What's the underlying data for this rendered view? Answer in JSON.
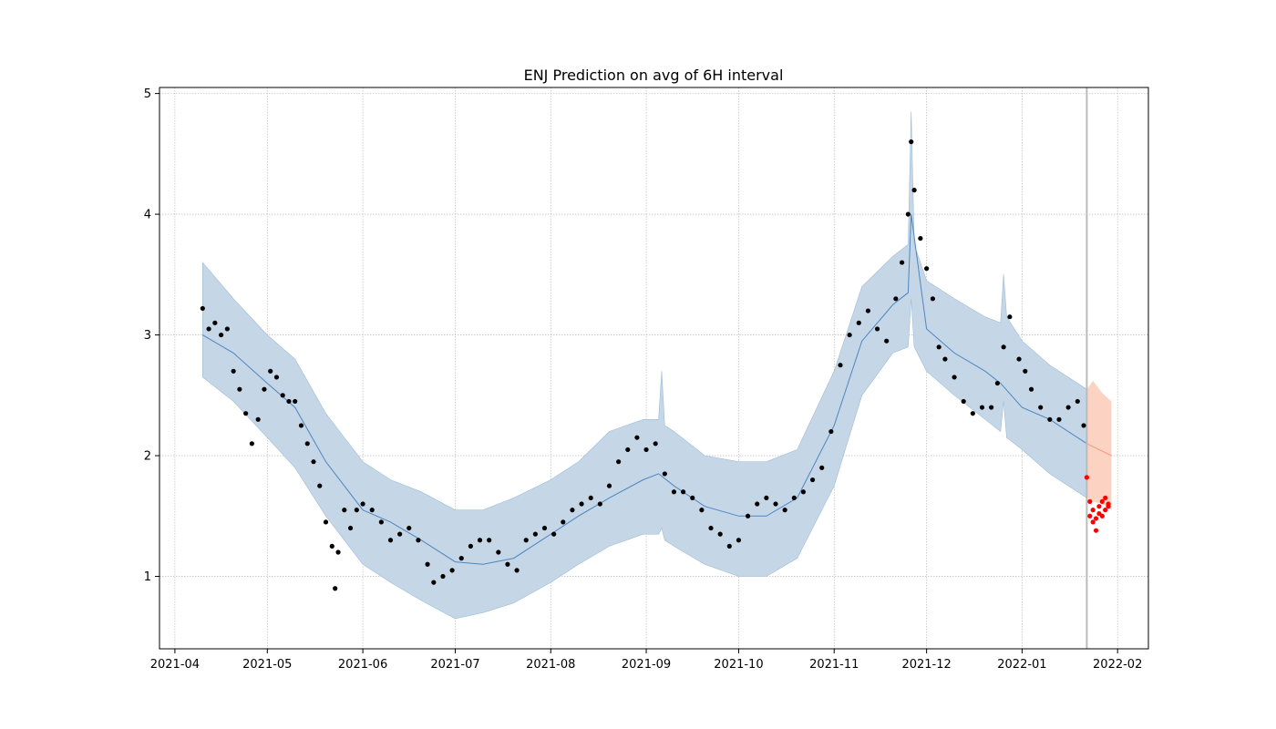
{
  "chart_data": {
    "type": "line",
    "title": "ENJ Prediction on avg of 6H interval",
    "xlabel": "",
    "ylabel": "",
    "x_tick_labels": [
      "2021-04",
      "2021-05",
      "2021-06",
      "2021-07",
      "2021-08",
      "2021-09",
      "2021-10",
      "2021-11",
      "2021-12",
      "2022-01",
      "2022-02"
    ],
    "y_tick_labels": [
      "1",
      "2",
      "3",
      "4",
      "5"
    ],
    "x_ticks": [
      "2021-04-01",
      "2021-05-01",
      "2021-06-01",
      "2021-07-01",
      "2021-08-01",
      "2021-09-01",
      "2021-10-01",
      "2021-11-01",
      "2021-12-01",
      "2022-01-01",
      "2022-02-01"
    ],
    "y_ticks": [
      1,
      2,
      3,
      4,
      5
    ],
    "xlim": [
      "2021-03-27",
      "2022-02-11"
    ],
    "ylim": [
      0.4,
      5.05
    ],
    "grid": true,
    "forecast_split_date": "2022-01-22",
    "colors": {
      "band": "#c5d7e7",
      "band_edge": "#9fbcd6",
      "forecast_band": "#fcd2c2",
      "trend": "#4f85c0",
      "forecast_trend": "#f09a80",
      "observed": "#000000",
      "actual_after_split": "#ff0000",
      "split_line": "#bbbbbb"
    },
    "series": [
      {
        "role": "trend",
        "x": [
          "2021-04-10",
          "2021-04-20",
          "2021-05-01",
          "2021-05-10",
          "2021-05-20",
          "2021-06-01",
          "2021-06-10",
          "2021-06-20",
          "2021-07-01",
          "2021-07-10",
          "2021-07-20",
          "2021-08-01",
          "2021-08-10",
          "2021-08-20",
          "2021-08-31",
          "2021-09-05",
          "2021-09-10",
          "2021-09-20",
          "2021-10-01",
          "2021-10-10",
          "2021-10-20",
          "2021-11-01",
          "2021-11-10",
          "2021-11-20",
          "2021-11-25",
          "2021-11-26",
          "2021-12-01",
          "2021-12-10",
          "2021-12-20",
          "2021-12-25",
          "2022-01-01",
          "2022-01-10",
          "2022-01-22"
        ],
        "values": [
          3.0,
          2.85,
          2.6,
          2.4,
          1.95,
          1.55,
          1.45,
          1.3,
          1.12,
          1.1,
          1.15,
          1.35,
          1.5,
          1.65,
          1.8,
          1.85,
          1.75,
          1.58,
          1.5,
          1.5,
          1.65,
          2.25,
          2.95,
          3.25,
          3.35,
          4.0,
          3.05,
          2.85,
          2.7,
          2.6,
          2.4,
          2.3,
          2.1
        ]
      },
      {
        "role": "band_upper",
        "x": [
          "2021-04-10",
          "2021-04-20",
          "2021-05-01",
          "2021-05-10",
          "2021-05-20",
          "2021-06-01",
          "2021-06-10",
          "2021-06-20",
          "2021-07-01",
          "2021-07-10",
          "2021-07-20",
          "2021-08-01",
          "2021-08-10",
          "2021-08-20",
          "2021-08-31",
          "2021-09-05",
          "2021-09-06",
          "2021-09-07",
          "2021-09-10",
          "2021-09-20",
          "2021-10-01",
          "2021-10-10",
          "2021-10-20",
          "2021-11-01",
          "2021-11-10",
          "2021-11-20",
          "2021-11-25",
          "2021-11-26",
          "2021-11-27",
          "2021-12-01",
          "2021-12-10",
          "2021-12-20",
          "2021-12-25",
          "2021-12-26",
          "2021-12-27",
          "2022-01-01",
          "2022-01-10",
          "2022-01-22"
        ],
        "values": [
          3.6,
          3.3,
          3.0,
          2.8,
          2.35,
          1.95,
          1.8,
          1.7,
          1.55,
          1.55,
          1.65,
          1.8,
          1.95,
          2.2,
          2.3,
          2.3,
          2.7,
          2.25,
          2.2,
          2.0,
          1.95,
          1.95,
          2.05,
          2.7,
          3.4,
          3.65,
          3.75,
          4.85,
          3.75,
          3.45,
          3.3,
          3.15,
          3.1,
          3.5,
          3.15,
          2.95,
          2.75,
          2.55
        ]
      },
      {
        "role": "band_lower",
        "x": [
          "2021-04-10",
          "2021-04-20",
          "2021-05-01",
          "2021-05-10",
          "2021-05-20",
          "2021-06-01",
          "2021-06-10",
          "2021-06-20",
          "2021-07-01",
          "2021-07-10",
          "2021-07-20",
          "2021-08-01",
          "2021-08-10",
          "2021-08-20",
          "2021-08-31",
          "2021-09-05",
          "2021-09-06",
          "2021-09-07",
          "2021-09-10",
          "2021-09-20",
          "2021-10-01",
          "2021-10-10",
          "2021-10-20",
          "2021-11-01",
          "2021-11-10",
          "2021-11-20",
          "2021-11-25",
          "2021-11-26",
          "2021-11-27",
          "2021-12-01",
          "2021-12-10",
          "2021-12-20",
          "2021-12-25",
          "2021-12-26",
          "2021-12-27",
          "2022-01-01",
          "2022-01-10",
          "2022-01-22"
        ],
        "values": [
          2.65,
          2.45,
          2.15,
          1.9,
          1.5,
          1.1,
          0.95,
          0.8,
          0.65,
          0.7,
          0.78,
          0.95,
          1.1,
          1.25,
          1.35,
          1.35,
          1.4,
          1.3,
          1.25,
          1.1,
          1.0,
          1.0,
          1.15,
          1.75,
          2.5,
          2.85,
          2.9,
          3.3,
          2.9,
          2.7,
          2.5,
          2.3,
          2.2,
          2.45,
          2.15,
          2.05,
          1.85,
          1.65
        ]
      },
      {
        "role": "forecast_trend",
        "x": [
          "2022-01-22",
          "2022-01-26",
          "2022-01-30"
        ],
        "values": [
          2.1,
          2.05,
          2.0
        ]
      },
      {
        "role": "forecast_upper",
        "x": [
          "2022-01-22",
          "2022-01-24",
          "2022-01-27",
          "2022-01-30"
        ],
        "values": [
          2.55,
          2.62,
          2.52,
          2.45
        ]
      },
      {
        "role": "forecast_lower",
        "x": [
          "2022-01-22",
          "2022-01-24",
          "2022-01-27",
          "2022-01-30"
        ],
        "values": [
          1.65,
          1.62,
          1.6,
          1.55
        ]
      },
      {
        "role": "observed",
        "x": [
          "2021-04-10",
          "2021-04-12",
          "2021-04-14",
          "2021-04-16",
          "2021-04-18",
          "2021-04-20",
          "2021-04-22",
          "2021-04-24",
          "2021-04-26",
          "2021-04-28",
          "2021-04-30",
          "2021-05-02",
          "2021-05-04",
          "2021-05-06",
          "2021-05-08",
          "2021-05-10",
          "2021-05-12",
          "2021-05-14",
          "2021-05-16",
          "2021-05-18",
          "2021-05-20",
          "2021-05-22",
          "2021-05-23",
          "2021-05-24",
          "2021-05-26",
          "2021-05-28",
          "2021-05-30",
          "2021-06-01",
          "2021-06-04",
          "2021-06-07",
          "2021-06-10",
          "2021-06-13",
          "2021-06-16",
          "2021-06-19",
          "2021-06-22",
          "2021-06-24",
          "2021-06-27",
          "2021-06-30",
          "2021-07-03",
          "2021-07-06",
          "2021-07-09",
          "2021-07-12",
          "2021-07-15",
          "2021-07-18",
          "2021-07-21",
          "2021-07-24",
          "2021-07-27",
          "2021-07-30",
          "2021-08-02",
          "2021-08-05",
          "2021-08-08",
          "2021-08-11",
          "2021-08-14",
          "2021-08-17",
          "2021-08-20",
          "2021-08-23",
          "2021-08-26",
          "2021-08-29",
          "2021-09-01",
          "2021-09-04",
          "2021-09-07",
          "2021-09-10",
          "2021-09-13",
          "2021-09-16",
          "2021-09-19",
          "2021-09-22",
          "2021-09-25",
          "2021-09-28",
          "2021-10-01",
          "2021-10-04",
          "2021-10-07",
          "2021-10-10",
          "2021-10-13",
          "2021-10-16",
          "2021-10-19",
          "2021-10-22",
          "2021-10-25",
          "2021-10-28",
          "2021-10-31",
          "2021-11-03",
          "2021-11-06",
          "2021-11-09",
          "2021-11-12",
          "2021-11-15",
          "2021-11-18",
          "2021-11-21",
          "2021-11-23",
          "2021-11-25",
          "2021-11-26",
          "2021-11-27",
          "2021-11-29",
          "2021-12-01",
          "2021-12-03",
          "2021-12-05",
          "2021-12-07",
          "2021-12-10",
          "2021-12-13",
          "2021-12-16",
          "2021-12-19",
          "2021-12-22",
          "2021-12-24",
          "2021-12-26",
          "2021-12-28",
          "2021-12-31",
          "2022-01-02",
          "2022-01-04",
          "2022-01-07",
          "2022-01-10",
          "2022-01-13",
          "2022-01-16",
          "2022-01-19",
          "2022-01-21"
        ],
        "values": [
          3.22,
          3.05,
          3.1,
          3.0,
          3.05,
          2.7,
          2.55,
          2.35,
          2.1,
          2.3,
          2.55,
          2.7,
          2.65,
          2.5,
          2.45,
          2.45,
          2.25,
          2.1,
          1.95,
          1.75,
          1.45,
          1.25,
          0.9,
          1.2,
          1.55,
          1.4,
          1.55,
          1.6,
          1.55,
          1.45,
          1.3,
          1.35,
          1.4,
          1.3,
          1.1,
          0.95,
          1.0,
          1.05,
          1.15,
          1.25,
          1.3,
          1.3,
          1.2,
          1.1,
          1.05,
          1.3,
          1.35,
          1.4,
          1.35,
          1.45,
          1.55,
          1.6,
          1.65,
          1.6,
          1.75,
          1.95,
          2.05,
          2.15,
          2.05,
          2.1,
          1.85,
          1.7,
          1.7,
          1.65,
          1.55,
          1.4,
          1.35,
          1.25,
          1.3,
          1.5,
          1.6,
          1.65,
          1.6,
          1.55,
          1.65,
          1.7,
          1.8,
          1.9,
          2.2,
          2.75,
          3.0,
          3.1,
          3.2,
          3.05,
          2.95,
          3.3,
          3.6,
          4.0,
          4.6,
          4.2,
          3.8,
          3.55,
          3.3,
          2.9,
          2.8,
          2.65,
          2.45,
          2.35,
          2.4,
          2.4,
          2.6,
          2.9,
          3.15,
          2.8,
          2.7,
          2.55,
          2.4,
          2.3,
          2.3,
          2.4,
          2.45,
          2.25
        ]
      },
      {
        "role": "actual_after_split",
        "x": [
          "2022-01-22",
          "2022-01-23",
          "2022-01-23",
          "2022-01-24",
          "2022-01-24",
          "2022-01-25",
          "2022-01-25",
          "2022-01-26",
          "2022-01-26",
          "2022-01-27",
          "2022-01-27",
          "2022-01-28",
          "2022-01-28",
          "2022-01-29",
          "2022-01-29"
        ],
        "values": [
          1.82,
          1.62,
          1.5,
          1.55,
          1.45,
          1.38,
          1.48,
          1.52,
          1.58,
          1.5,
          1.62,
          1.55,
          1.65,
          1.58,
          1.6
        ]
      }
    ]
  }
}
